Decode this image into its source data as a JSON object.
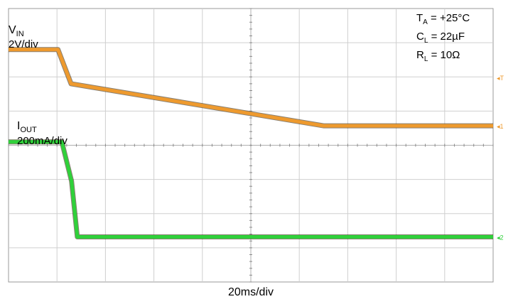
{
  "chart_data": {
    "type": "line",
    "title": "",
    "xlabel": "20ms/div",
    "grid": true,
    "time_div": 20,
    "divisions": {
      "x": 10,
      "y": 8
    },
    "xlim": [
      0,
      10
    ],
    "ylim": [
      0,
      8
    ],
    "conditions": [
      {
        "main": "T",
        "sub": "A",
        "rest": " = +25°C"
      },
      {
        "main": "C",
        "sub": "L",
        "rest": " = 22µF"
      },
      {
        "main": "R",
        "sub": "L",
        "rest": " = 10Ω"
      }
    ],
    "series": [
      {
        "name_main": "V",
        "name_sub": "IN",
        "scale": "2V/div",
        "color": "#ee9a2e",
        "points": [
          [
            0,
            6.8
          ],
          [
            1.02,
            6.8
          ],
          [
            1.29,
            5.8
          ],
          [
            6.5,
            4.57
          ],
          [
            10,
            4.57
          ]
        ]
      },
      {
        "name_main": "I",
        "name_sub": "OUT",
        "scale": "200mA/div",
        "color": "#2fd13a",
        "points": [
          [
            0,
            4.1
          ],
          [
            1.1,
            4.1
          ],
          [
            1.3,
            2.95
          ],
          [
            1.42,
            1.32
          ],
          [
            10,
            1.32
          ]
        ]
      }
    ],
    "markers": [
      {
        "text": "T",
        "color": "#ee9a2e",
        "y": 5.98
      },
      {
        "text": "1",
        "color": "#ee9a2e",
        "y": 4.57
      },
      {
        "text": "2",
        "color": "#2fd13a",
        "y": 1.32
      }
    ]
  }
}
